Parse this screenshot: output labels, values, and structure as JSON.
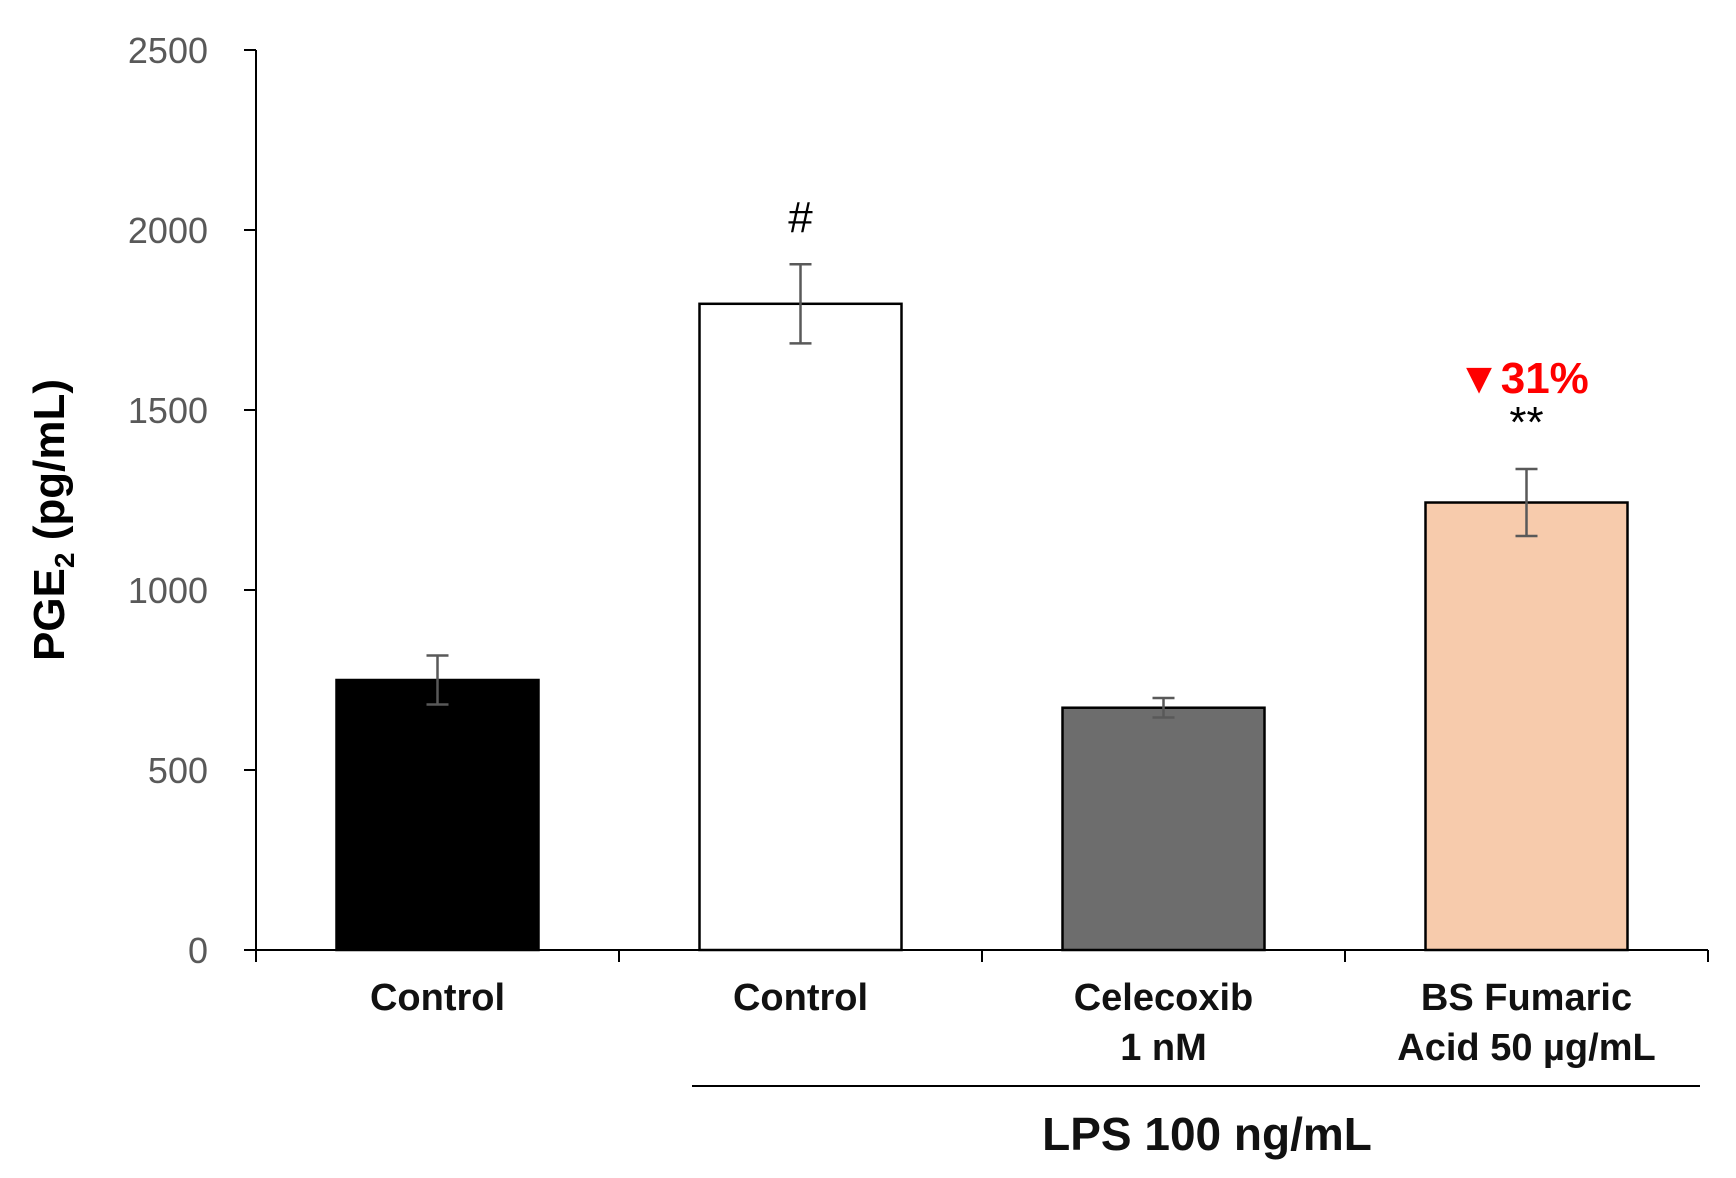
{
  "chart_data": {
    "type": "bar",
    "ylabel_main": "PGE",
    "ylabel_sub": "2",
    "ylabel_unit": "(pg/mL)",
    "ylim": [
      0,
      2500
    ],
    "yticks": [
      "0",
      "500",
      "1000",
      "1500",
      "2000",
      "2500"
    ],
    "categories": [
      {
        "line1": "Control",
        "line2": ""
      },
      {
        "line1": "Control",
        "line2": ""
      },
      {
        "line1": "Celecoxib",
        "line2": "1 nM"
      },
      {
        "line1": "BS Fumaric",
        "line2": "Acid 50 µg/mL"
      }
    ],
    "values": [
      750,
      1795,
      673,
      1243
    ],
    "errors": [
      68,
      110,
      27,
      93
    ],
    "colors": [
      "#000000",
      "#ffffff",
      "#6d6d6d",
      "#f7cbac"
    ],
    "annotations": [
      "",
      "#",
      "",
      "**"
    ],
    "reduction_label": "▼31%",
    "reduction_color": "#ff0000",
    "group_label": "LPS 100 ng/mL",
    "grid": false
  }
}
